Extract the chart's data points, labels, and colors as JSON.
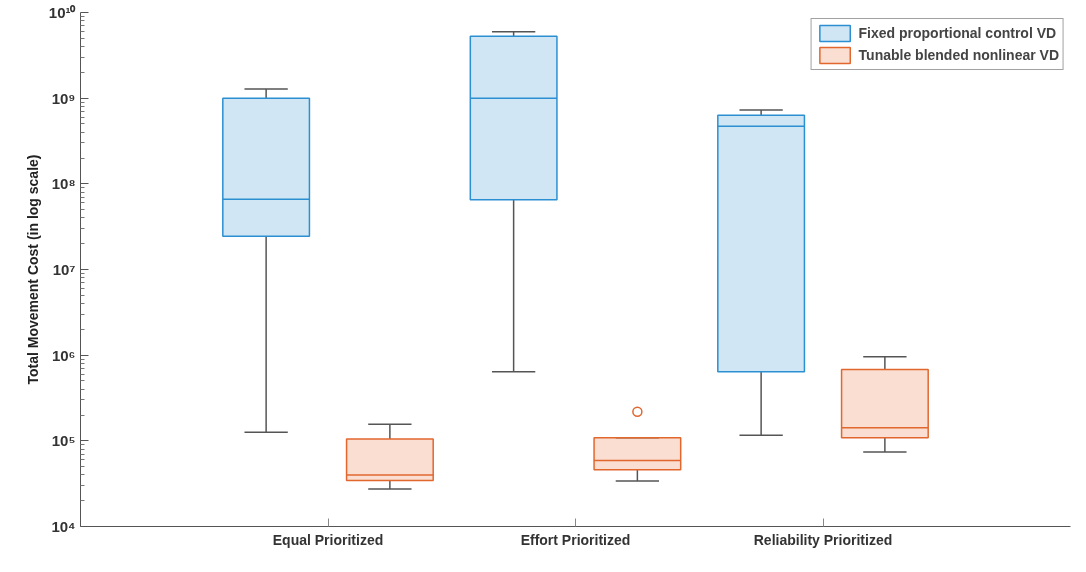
{
  "chart_data": {
    "type": "box",
    "ylabel": "Total Movement Cost (in log scale)",
    "log": true,
    "grid": false,
    "legend": "top right",
    "categories": [
      "Equal Prioritized",
      "Effort Prioritized",
      "Reliability Prioritized"
    ],
    "ylim": [
      10000,
      10000000000
    ],
    "yticks": [
      {
        "value": 10000,
        "label": "10⁴"
      },
      {
        "value": 100000,
        "label": "10⁵"
      },
      {
        "value": 1000000,
        "label": "10⁶"
      },
      {
        "value": 10000000,
        "label": "10⁷"
      },
      {
        "value": 100000000,
        "label": "10⁸"
      },
      {
        "value": 1000000000,
        "label": "10⁹"
      },
      {
        "value": 10000000000,
        "label": "10¹⁰"
      }
    ],
    "series": [
      {
        "name": "Fixed proportional control VD",
        "color": "#2b8fd2",
        "boxes": [
          {
            "low": 126000,
            "q1": 24500000,
            "median": 66000000,
            "q3": 1000000000,
            "high": 1280000000
          },
          {
            "low": 640000,
            "q1": 65000000,
            "median": 1000000000,
            "q3": 5270000000,
            "high": 5960000000
          },
          {
            "low": 116000,
            "q1": 640000,
            "median": 470000000,
            "q3": 630000000,
            "high": 730000000
          }
        ]
      },
      {
        "name": "Tunable blended nonlinear VD",
        "color": "#e2672f",
        "boxes": [
          {
            "low": 27400,
            "q1": 34500,
            "median": 40000,
            "q3": 105000,
            "high": 156000
          },
          {
            "low": 34000,
            "q1": 46000,
            "median": 59000,
            "q3": 109000,
            "high": 109000,
            "outliers": [
              219000
            ]
          },
          {
            "low": 74000,
            "q1": 109000,
            "median": 142000,
            "q3": 680000,
            "high": 960000
          }
        ]
      }
    ]
  }
}
